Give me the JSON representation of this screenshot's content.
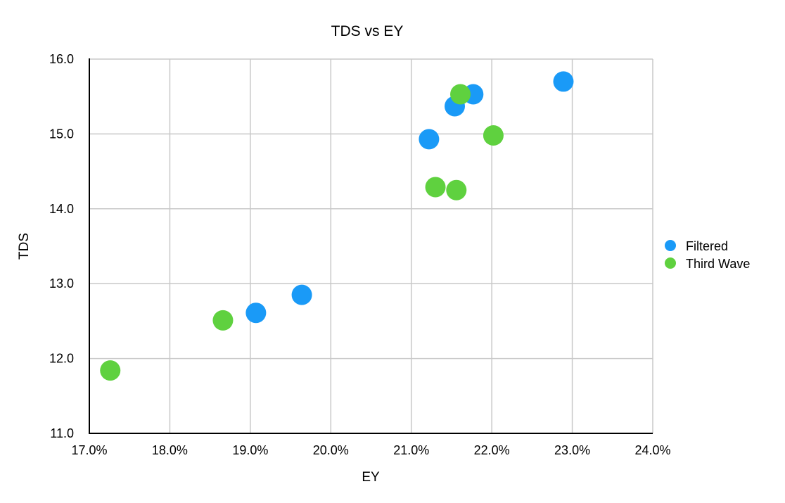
{
  "chart_data": {
    "type": "scatter",
    "title": "TDS vs EY",
    "xlabel": "EY",
    "ylabel": "TDS",
    "xlim": [
      0.17,
      0.24
    ],
    "ylim": [
      11.0,
      16.0
    ],
    "x_ticks": [
      0.17,
      0.18,
      0.19,
      0.2,
      0.21,
      0.22,
      0.23,
      0.24
    ],
    "x_tick_labels": [
      "17.0%",
      "18.0%",
      "19.0%",
      "20.0%",
      "21.0%",
      "22.0%",
      "23.0%",
      "24.0%"
    ],
    "y_ticks": [
      11,
      12,
      13,
      14,
      15,
      16
    ],
    "y_tick_labels": [
      "11.0",
      "12.0",
      "13.0",
      "14.0",
      "15.0",
      "16.0"
    ],
    "grid": true,
    "legend_position": "right",
    "series": [
      {
        "name": "Filtered",
        "color": "#1a9af7",
        "points": [
          {
            "x": 0.1907,
            "y": 12.61
          },
          {
            "x": 0.1964,
            "y": 12.85
          },
          {
            "x": 0.2122,
            "y": 14.93
          },
          {
            "x": 0.2154,
            "y": 15.37
          },
          {
            "x": 0.2177,
            "y": 15.53
          },
          {
            "x": 0.2289,
            "y": 15.7
          }
        ]
      },
      {
        "name": "Third Wave",
        "color": "#5fd13f",
        "points": [
          {
            "x": 0.1726,
            "y": 11.84
          },
          {
            "x": 0.1866,
            "y": 12.51
          },
          {
            "x": 0.213,
            "y": 14.29
          },
          {
            "x": 0.2156,
            "y": 14.25
          },
          {
            "x": 0.2161,
            "y": 15.53
          },
          {
            "x": 0.2202,
            "y": 14.98
          }
        ]
      }
    ]
  }
}
